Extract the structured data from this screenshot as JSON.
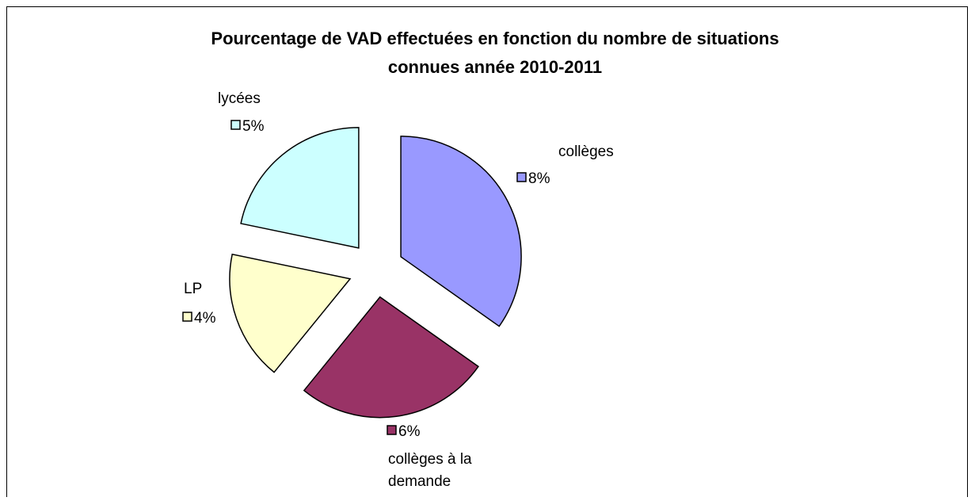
{
  "chart_data": {
    "type": "pie",
    "title": [
      "Pourcentage de VAD effectuées en fonction du nombre de situations",
      "connues année 2010-2011"
    ],
    "categories": [
      "collèges",
      "collèges à la demande",
      "LP",
      "lycées"
    ],
    "values": [
      8,
      6,
      4,
      5
    ],
    "value_labels": [
      "8%",
      "6%",
      "4%",
      "5%"
    ],
    "colors": [
      "#9999ff",
      "#993366",
      "#ffffcc",
      "#ccffff"
    ]
  }
}
